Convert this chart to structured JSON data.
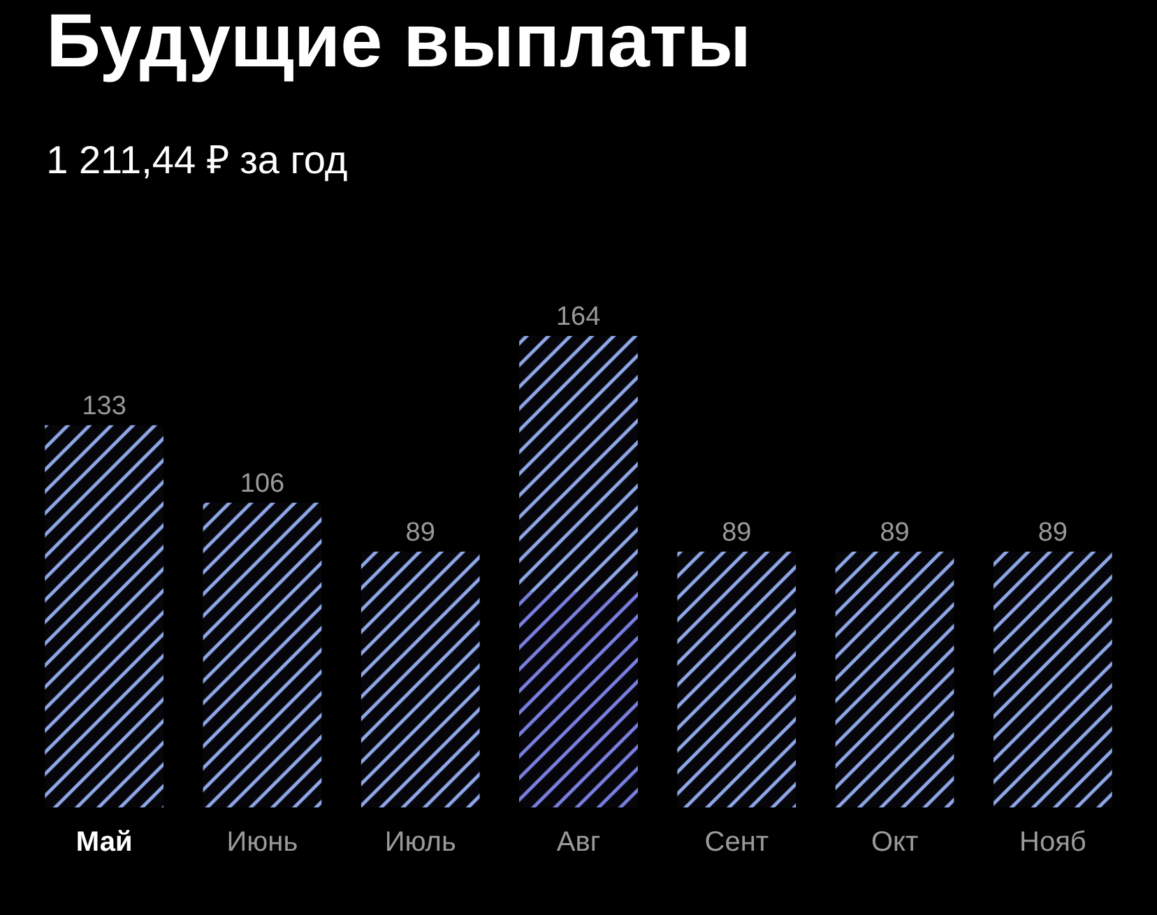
{
  "chart_data": {
    "type": "bar",
    "title": "Будущие выплаты",
    "subtitle": "1 211,44 ₽ за год",
    "categories": [
      "Май",
      "Июнь",
      "Июль",
      "Авг",
      "Сент",
      "Окт",
      "Нояб"
    ],
    "series": [
      {
        "color": "#8fa8e8",
        "values": [
          133,
          106,
          89,
          164,
          89,
          89,
          89
        ],
        "value_labels": [
          "133",
          "106",
          "89",
          "164",
          "89",
          "89",
          "89"
        ]
      },
      {
        "color": "#7b7fe0",
        "values": [
          null,
          null,
          null,
          75,
          null,
          null,
          null
        ]
      }
    ],
    "tick_labels": "x"
  }
}
